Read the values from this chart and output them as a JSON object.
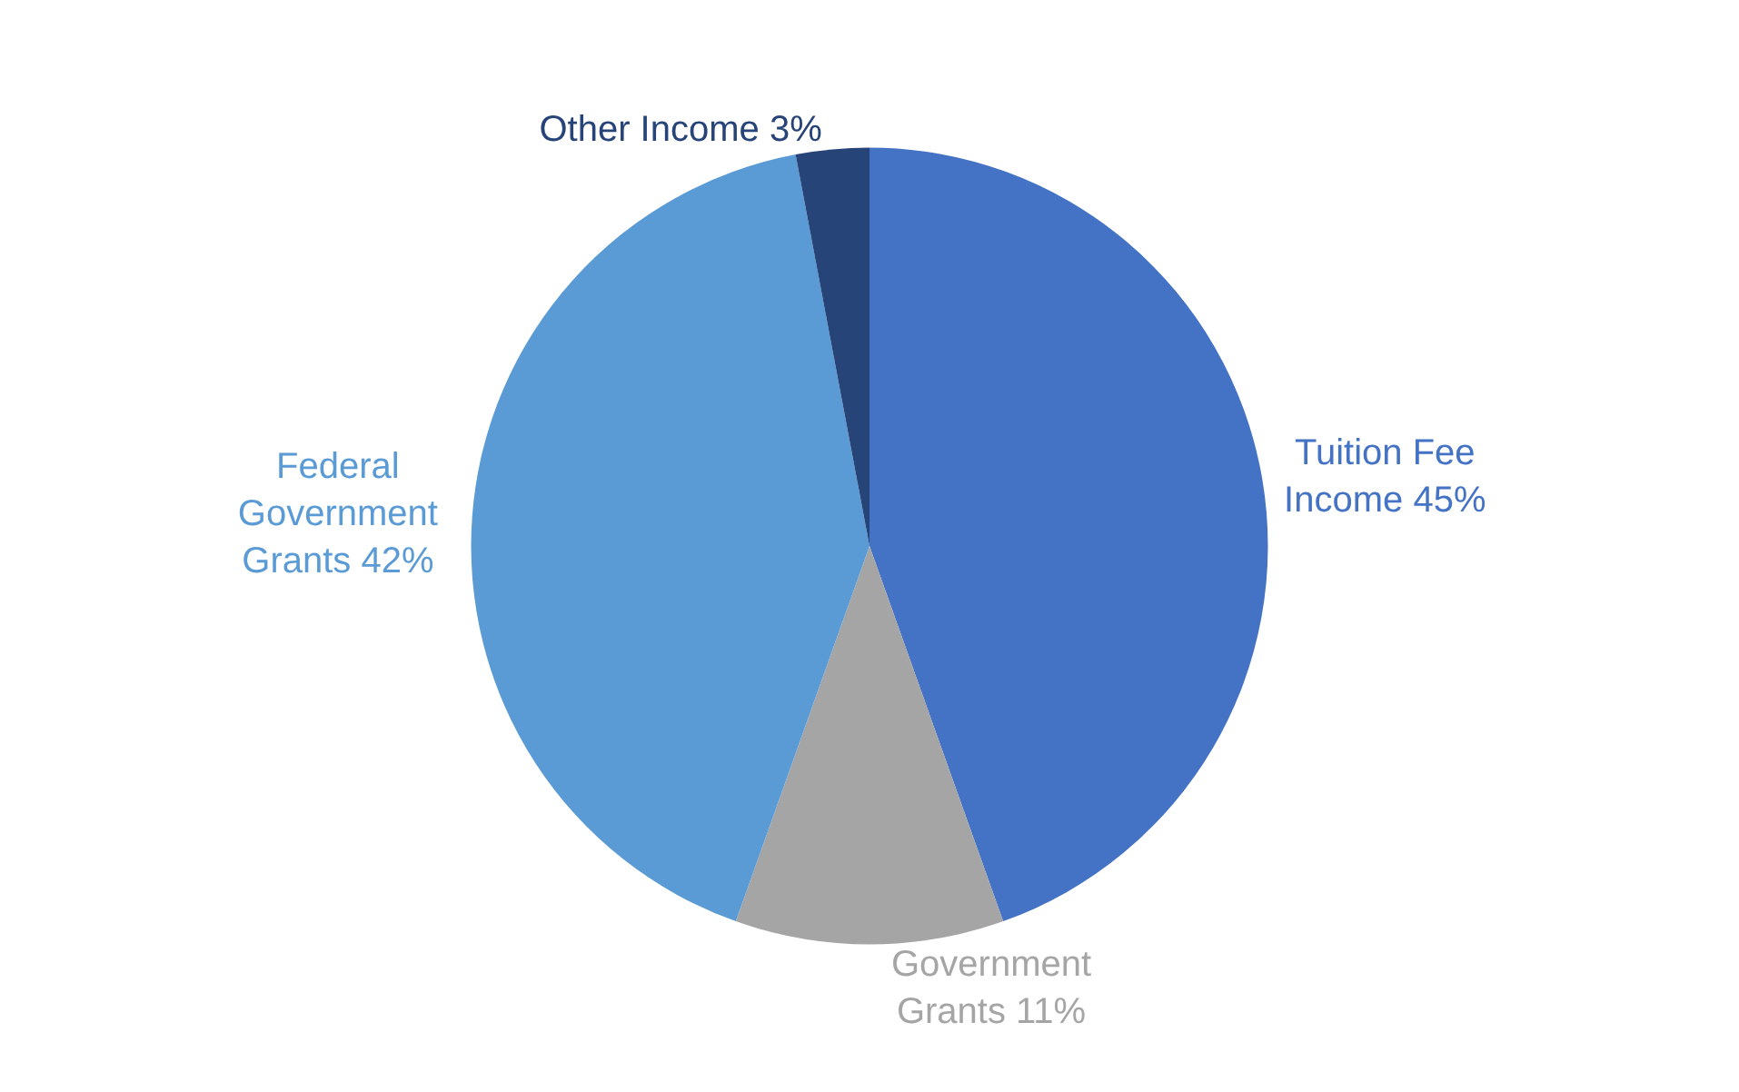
{
  "chart_data": {
    "type": "pie",
    "categories": [
      "Tuition Fee Income",
      "Government Grants",
      "Federal Government Grants",
      "Other Income"
    ],
    "values": [
      45,
      11,
      42,
      3
    ],
    "value_labels": [
      "45%",
      "11%",
      "42%",
      "3%"
    ],
    "colors": [
      "#4472c4",
      "#a5a5a5",
      "#5b9bd5",
      "#264478"
    ],
    "legend": false
  }
}
